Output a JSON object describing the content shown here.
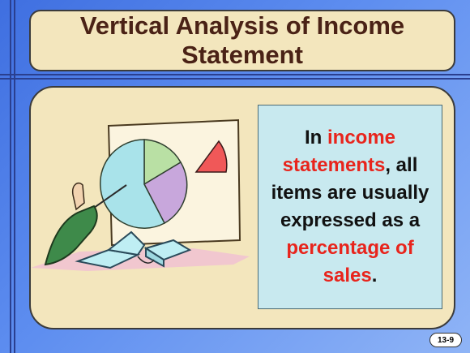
{
  "slide": {
    "title_line1": "Vertical Analysis of Income",
    "title_line2": "Statement",
    "callout": {
      "part1": "In ",
      "highlight1": "income statements",
      "part2": ", all items are usually expressed as a ",
      "highlight2": "percentage of sales",
      "part3": "."
    },
    "slide_number": "13-9"
  },
  "colors": {
    "background": "#5e8ef0",
    "panel": "#f3e6bd",
    "title_text": "#4a2216",
    "callout_bg": "#c8e9ef",
    "highlight": "#e8241c"
  },
  "icons": {
    "illustration": "presenter-with-pie-chart-icon"
  }
}
